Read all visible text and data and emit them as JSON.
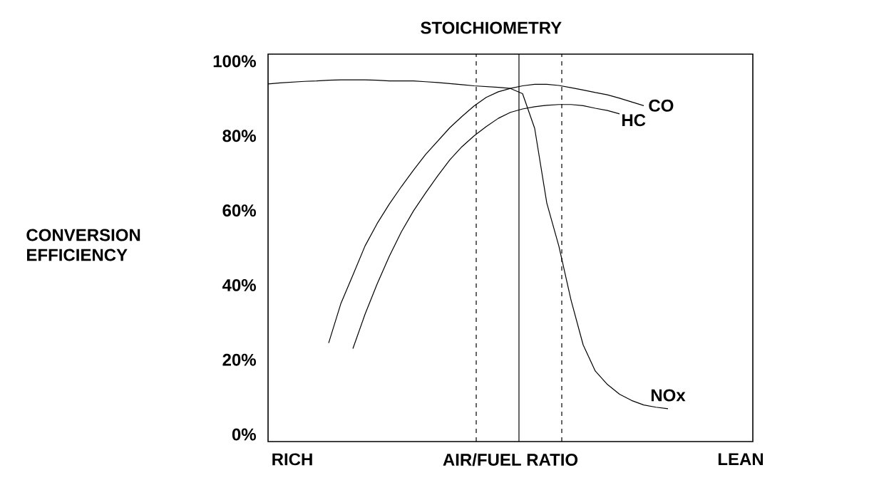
{
  "chart_data": {
    "type": "line",
    "title": "STOICHIOMETRY",
    "ylabel": "CONVERSION EFFICIENCY",
    "categories": [
      null,
      null,
      "RICH",
      null,
      null,
      null,
      null,
      null,
      null,
      null,
      null,
      null,
      null,
      null,
      null,
      null,
      null,
      null,
      null,
      null,
      "AIR/FUEL RATIO",
      null,
      null,
      null,
      null,
      null,
      null,
      null,
      null,
      null,
      null,
      null,
      null,
      null,
      null,
      null,
      null,
      null,
      null,
      "LEAN",
      null
    ],
    "ylim": [
      -1.9,
      101.9
    ],
    "yticks": [
      {
        "value": 0,
        "label": "0%"
      },
      {
        "value": 20,
        "label": "20%"
      },
      {
        "value": 40,
        "label": "40%"
      },
      {
        "value": 60,
        "label": "60%"
      },
      {
        "value": 80,
        "label": "80%"
      },
      {
        "value": 100,
        "label": "100%"
      }
    ],
    "grid": false,
    "legend": false,
    "marker": "none",
    "line_style": "solid",
    "series": [
      {
        "name": "CO",
        "color": "#000000",
        "values": [
          null,
          null,
          null,
          null,
          null,
          24.5,
          35.0,
          42.7,
          50.5,
          56.5,
          61.7,
          66.4,
          70.8,
          75.0,
          78.6,
          82.2,
          85.2,
          88.0,
          90.3,
          91.8,
          92.7,
          93.4,
          93.8,
          93.8,
          93.5,
          92.9,
          92.3,
          91.6,
          91.0,
          90.1,
          89.1,
          88.1,
          null,
          null,
          null,
          null,
          null,
          null,
          null,
          null,
          null
        ]
      },
      {
        "name": "HC",
        "color": "#000000",
        "values": [
          null,
          null,
          null,
          null,
          null,
          null,
          null,
          23.0,
          32.2,
          40.3,
          47.7,
          54.3,
          59.9,
          64.7,
          69.3,
          73.6,
          77.1,
          80.0,
          82.5,
          84.7,
          86.3,
          87.2,
          87.8,
          88.2,
          88.4,
          88.4,
          88.1,
          87.4,
          86.8,
          85.9,
          null,
          null,
          null,
          null,
          null,
          null,
          null,
          null,
          null,
          null,
          null
        ]
      },
      {
        "name": "NOx",
        "color": "#000000",
        "values": [
          93.9,
          94.2,
          94.4,
          94.6,
          94.7,
          94.9,
          95.0,
          95.0,
          95.0,
          94.9,
          94.7,
          94.7,
          94.7,
          94.5,
          94.3,
          94.0,
          93.7,
          93.4,
          93.2,
          93.0,
          92.7,
          91.3,
          82.0,
          62.0,
          50.4,
          36.0,
          24.0,
          17.0,
          13.4,
          10.8,
          9.1,
          7.9,
          7.3,
          6.9,
          null,
          null,
          null,
          null,
          null,
          null,
          null
        ]
      }
    ]
  }
}
